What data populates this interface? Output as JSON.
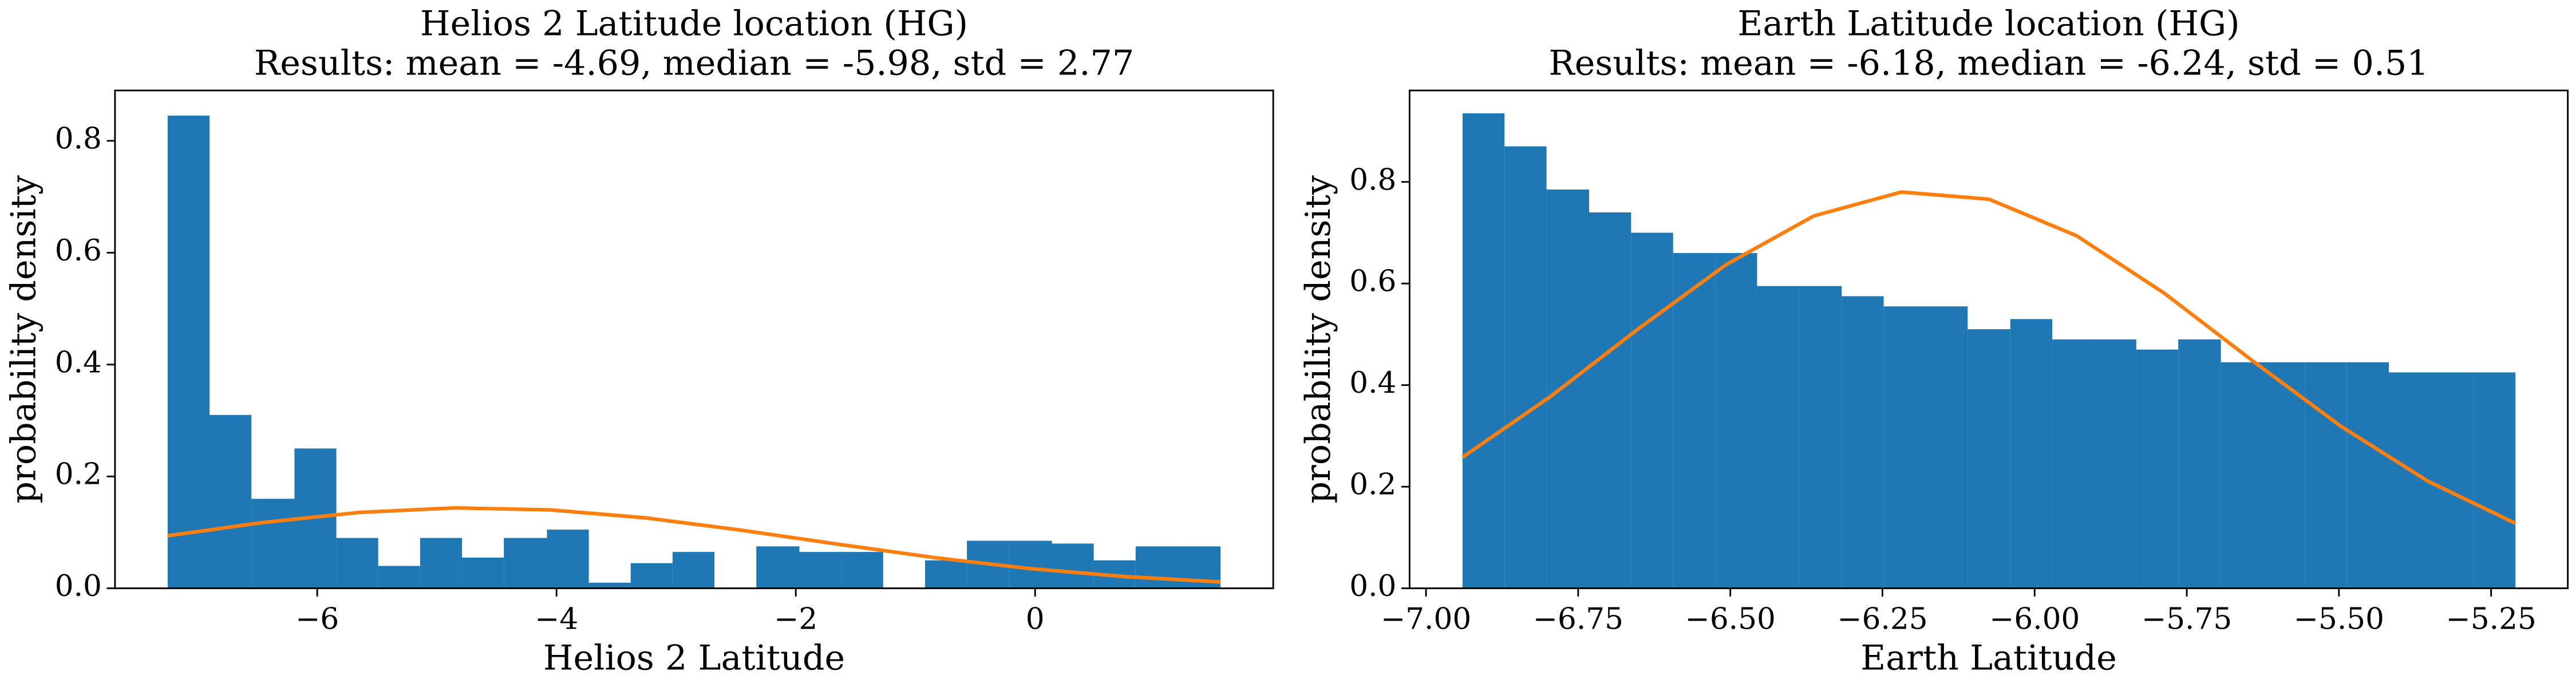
{
  "chart_data": [
    {
      "type": "histogram",
      "title": "Helios 2 Latitude location (HG)",
      "subtitle": "Results: mean = -4.69, median = -5.98, std = 2.77",
      "xlabel": "Helios 2 Latitude",
      "ylabel": "probability density",
      "color": "#1f77b4",
      "bins": [
        -7.25,
        -6.9,
        -6.55,
        -6.19,
        -5.84,
        -5.49,
        -5.14,
        -4.79,
        -4.44,
        -4.08,
        -3.73,
        -3.38,
        -3.03,
        -2.68,
        -2.33,
        -1.97,
        -1.62,
        -1.27,
        -0.92,
        -0.57,
        -0.22,
        0.14,
        0.49,
        0.84,
        1.19,
        1.55
      ],
      "values": [
        0.845,
        0.31,
        0.16,
        0.25,
        0.09,
        0.04,
        0.09,
        0.055,
        0.09,
        0.105,
        0.01,
        0.045,
        0.065,
        0,
        0.075,
        0.065,
        0.065,
        0,
        0.05,
        0.085,
        0.085,
        0.08,
        0.05,
        0.075,
        0.075
      ],
      "curve": {
        "color": "#ff7f0e",
        "x": [
          -7.25,
          -6.45,
          -5.65,
          -4.85,
          -4.05,
          -3.25,
          -2.45,
          -1.65,
          -0.85,
          -0.05,
          0.75,
          1.55
        ],
        "values": [
          0.0939,
          0.1177,
          0.1356,
          0.1438,
          0.1402,
          0.1258,
          0.1038,
          0.0789,
          0.0551,
          0.0354,
          0.0209,
          0.0114
        ]
      },
      "xlim": [
        -7.69,
        1.99
      ],
      "xticks": [
        {
          "value": -6,
          "label": "−6"
        },
        {
          "value": -4,
          "label": "−4"
        },
        {
          "value": -2,
          "label": "−2"
        },
        0
      ],
      "ylim": [
        0,
        0.89
      ],
      "yticks": [
        {
          "value": 0,
          "label": "0.0"
        },
        0.2,
        0.4,
        0.6,
        0.8
      ]
    },
    {
      "type": "histogram",
      "title": "Earth Latitude location (HG)",
      "subtitle": "Results: mean = -6.18, median = -6.24, std = 0.51",
      "xlabel": "Earth Latitude",
      "ylabel": "probability density",
      "color": "#1f77b4",
      "bins": [
        -6.94,
        -6.871,
        -6.802,
        -6.732,
        -6.663,
        -6.594,
        -6.525,
        -6.456,
        -6.386,
        -6.317,
        -6.248,
        -6.179,
        -6.11,
        -6.04,
        -5.971,
        -5.902,
        -5.833,
        -5.764,
        -5.694,
        -5.625,
        -5.556,
        -5.487,
        -5.418,
        -5.348,
        -5.279,
        -5.21
      ],
      "values": [
        0.935,
        0.87,
        0.785,
        0.74,
        0.7,
        0.66,
        0.66,
        0.595,
        0.595,
        0.575,
        0.555,
        0.555,
        0.51,
        0.53,
        0.49,
        0.49,
        0.47,
        0.49,
        0.445,
        0.445,
        0.445,
        0.445,
        0.425,
        0.425,
        0.425
      ],
      "curve": {
        "color": "#ff7f0e",
        "x": [
          -6.94,
          -6.796,
          -6.652,
          -6.507,
          -6.363,
          -6.219,
          -6.075,
          -5.931,
          -5.787,
          -5.642,
          -5.498,
          -5.354,
          -5.21
        ],
        "values": [
          0.258,
          0.377,
          0.51,
          0.637,
          0.733,
          0.78,
          0.766,
          0.694,
          0.581,
          0.448,
          0.32,
          0.211,
          0.128
        ]
      },
      "xlim": [
        -7.027,
        -5.124
      ],
      "xticks": [
        {
          "value": -7,
          "label": "−7.00"
        },
        {
          "value": -6.75,
          "label": "−6.75"
        },
        {
          "value": -6.5,
          "label": "−6.50"
        },
        {
          "value": -6.25,
          "label": "−6.25"
        },
        {
          "value": -6,
          "label": "−6.00"
        },
        {
          "value": -5.75,
          "label": "−5.75"
        },
        {
          "value": -5.5,
          "label": "−5.50"
        },
        {
          "value": -5.25,
          "label": "−5.25"
        }
      ],
      "ylim": [
        0,
        0.98
      ],
      "yticks": [
        {
          "value": 0,
          "label": "0.0"
        },
        0.2,
        0.4,
        0.6,
        0.8
      ]
    }
  ]
}
